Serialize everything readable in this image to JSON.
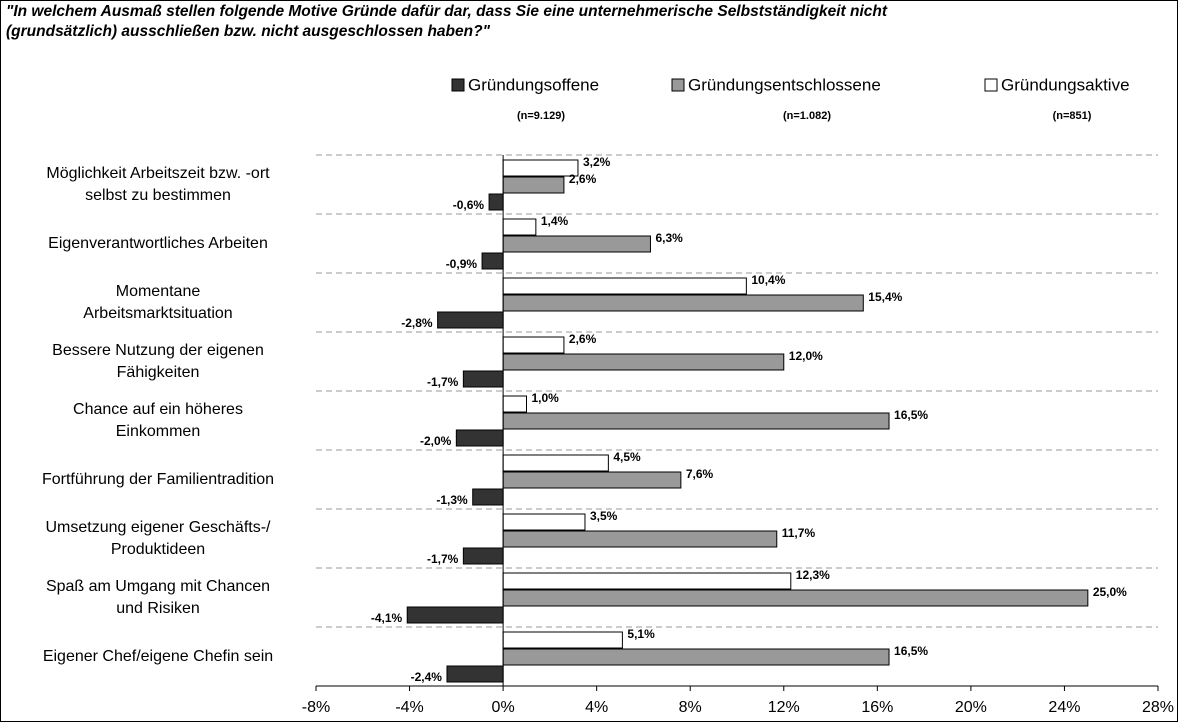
{
  "chart_data": {
    "type": "hbar",
    "title": "\"In welchem Ausmaß stellen folgende Motive Gründe dafür dar, dass Sie eine unternehmerische Selbstständigkeit nicht\n(grundsätzlich) ausschließen bzw. nicht ausgeschlossen haben?\"",
    "categories": [
      "Möglichkeit Arbeitszeit bzw. -ort\nselbst zu bestimmen",
      "Eigenverantwortliches Arbeiten",
      "Momentane\nArbeitsmarktsituation",
      "Bessere Nutzung der eigenen\nFähigkeiten",
      "Chance auf ein höheres\nEinkommen",
      "Fortführung der Familientradition",
      "Umsetzung eigener Geschäfts-/\nProduktideen",
      "Spaß am Umgang mit Chancen\nund Risiken",
      "Eigener Chef/eigene Chefin sein"
    ],
    "series": [
      {
        "name": "Gründungsoffene",
        "note": "(n=9.129)",
        "color": "#333333",
        "values": [
          -0.6,
          -0.9,
          -2.8,
          -1.7,
          -2.0,
          -1.3,
          -1.7,
          -4.1,
          -2.4
        ],
        "value_labels": [
          "-0,6%",
          "-0,9%",
          "-2,8%",
          "-1,7%",
          "-2,0%",
          "-1,3%",
          "-1,7%",
          "-4,1%",
          "-2,4%"
        ]
      },
      {
        "name": "Gründungsentschlossene",
        "note": "(n=1.082)",
        "color": "#999999",
        "values": [
          2.6,
          6.3,
          15.4,
          12.0,
          16.5,
          7.6,
          11.7,
          25.0,
          16.5
        ],
        "value_labels": [
          "2,6%",
          "6,3%",
          "15,4%",
          "12,0%",
          "16,5%",
          "7,6%",
          "11,7%",
          "25,0%",
          "16,5%"
        ]
      },
      {
        "name": "Gründungsaktive",
        "note": "(n=851)",
        "color": "#ffffff",
        "values": [
          3.2,
          1.4,
          10.4,
          2.6,
          1.0,
          4.5,
          3.5,
          12.3,
          5.1
        ],
        "value_labels": [
          "3,2%",
          "1,4%",
          "10,4%",
          "2,6%",
          "1,0%",
          "4,5%",
          "3,5%",
          "12,3%",
          "5,1%"
        ]
      }
    ],
    "xlim": [
      -8,
      28
    ],
    "xticks": [
      {
        "value": -8,
        "label": "-8%"
      },
      {
        "value": -4,
        "label": "-4%"
      },
      {
        "value": 0,
        "label": "0%"
      },
      {
        "value": 4,
        "label": "4%"
      },
      {
        "value": 8,
        "label": "8%"
      },
      {
        "value": 12,
        "label": "12%"
      },
      {
        "value": 16,
        "label": "16%"
      },
      {
        "value": 20,
        "label": "20%"
      },
      {
        "value": 24,
        "label": "24%"
      },
      {
        "value": 28,
        "label": "28%"
      }
    ]
  }
}
